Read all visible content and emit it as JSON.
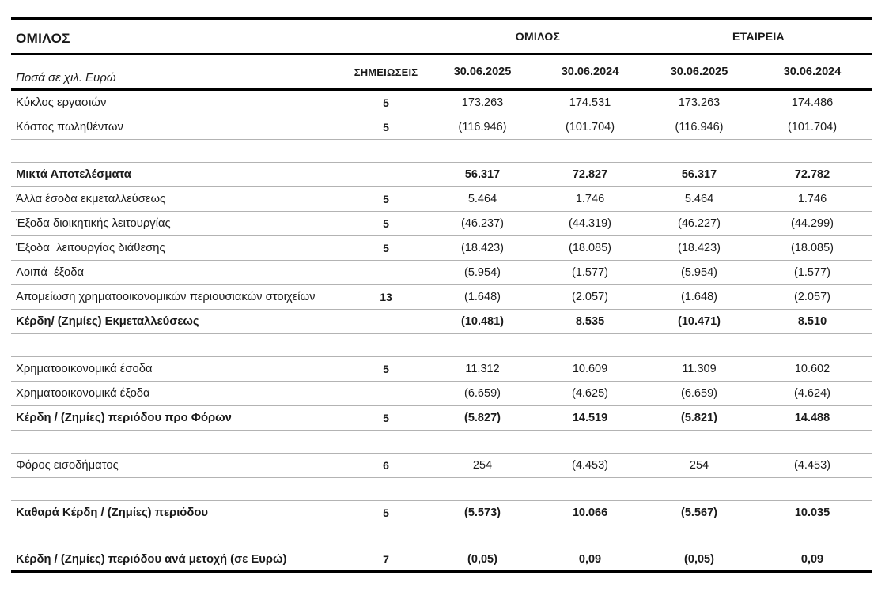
{
  "header": {
    "title": "ΟΜΙΛΟΣ",
    "units_label": "Ποσά σε χιλ. Ευρώ",
    "notes_header": "ΣΗΜΕΙΩΣΕΙΣ",
    "group_headers": [
      "ΟΜΙΛΟΣ",
      "ΕΤΑΙΡΕΙΑ"
    ],
    "date_headers": [
      "30.06.2025",
      "30.06.2024",
      "30.06.2025",
      "30.06.2024"
    ]
  },
  "colors": {
    "text": "#1a1a1a",
    "rule_black": "#000000",
    "rule_gray": "#b3b3b3"
  },
  "table": {
    "rows": [
      {
        "label": "Κύκλος εργασιών",
        "note": "5",
        "values": [
          "173.263",
          "174.531",
          "173.263",
          "174.486"
        ],
        "bold": false
      },
      {
        "label": "Κόστος πωληθέντων",
        "note": "5",
        "values": [
          "(116.946)",
          "(101.704)",
          "(116.946)",
          "(101.704)"
        ],
        "bold": false
      },
      {
        "spacer": true
      },
      {
        "label": "Μικτά Αποτελέσματα",
        "note": "",
        "values": [
          "56.317",
          "72.827",
          "56.317",
          "72.782"
        ],
        "bold": true
      },
      {
        "label": "Άλλα έσοδα εκμεταλλεύσεως",
        "note": "5",
        "values": [
          "5.464",
          "1.746",
          "5.464",
          "1.746"
        ],
        "bold": false
      },
      {
        "label": "Έξοδα διοικητικής λειτουργίας",
        "note": "5",
        "values": [
          "(46.237)",
          "(44.319)",
          "(46.227)",
          "(44.299)"
        ],
        "bold": false
      },
      {
        "label": "Έξοδα  λειτουργίας διάθεσης",
        "note": "5",
        "values": [
          "(18.423)",
          "(18.085)",
          "(18.423)",
          "(18.085)"
        ],
        "bold": false
      },
      {
        "label": "Λοιπά  έξοδα",
        "note": "",
        "values": [
          "(5.954)",
          "(1.577)",
          "(5.954)",
          "(1.577)"
        ],
        "bold": false
      },
      {
        "label": "Απομείωση χρηματοοικονομικών περιουσιακών στοιχείων",
        "note": "13",
        "values": [
          "(1.648)",
          "(2.057)",
          "(1.648)",
          "(2.057)"
        ],
        "bold": false
      },
      {
        "label": "Κέρδη/ (Ζημίες) Εκμεταλλεύσεως",
        "note": "",
        "values": [
          "(10.481)",
          "8.535",
          "(10.471)",
          "8.510"
        ],
        "bold": true
      },
      {
        "spacer": true
      },
      {
        "label": "Χρηματοοικονομικά έσοδα",
        "note": "5",
        "values": [
          "11.312",
          "10.609",
          "11.309",
          "10.602"
        ],
        "bold": false
      },
      {
        "label": "Χρηματοοικονομικά έξοδα",
        "note": "",
        "values": [
          "(6.659)",
          "(4.625)",
          "(6.659)",
          "(4.624)"
        ],
        "bold": false
      },
      {
        "label": "Κέρδη / (Ζημίες) περιόδου προ Φόρων",
        "note": "5",
        "values": [
          "(5.827)",
          "14.519",
          "(5.821)",
          "14.488"
        ],
        "bold": true
      },
      {
        "spacer": true
      },
      {
        "label": "Φόρος εισοδήματος",
        "note": "6",
        "values": [
          "254",
          "(4.453)",
          "254",
          "(4.453)"
        ],
        "bold": false
      },
      {
        "spacer": true
      },
      {
        "label": "Καθαρά Κέρδη / (Ζημίες) περιόδου",
        "note": "5",
        "values": [
          "(5.573)",
          "10.066",
          "(5.567)",
          "10.035"
        ],
        "bold": true
      },
      {
        "spacer": true
      },
      {
        "label": "Κέρδη / (Ζημίες) περιόδου ανά μετοχή (σε Ευρώ)",
        "note": "7",
        "values": [
          "(0,05)",
          "0,09",
          "(0,05)",
          "0,09"
        ],
        "bold": true
      }
    ]
  }
}
